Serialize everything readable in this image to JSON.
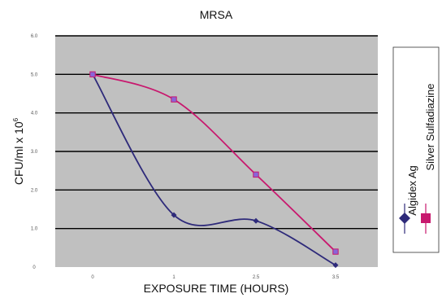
{
  "chart_data": {
    "type": "line",
    "title": "MRSA",
    "xlabel": "EXPOSURE TIME (HOURS)",
    "ylabel": "CFU/ml x 10",
    "ylabel_superscript": "6",
    "x": [
      "0",
      "1",
      "2.5",
      "3.5"
    ],
    "xticks": [
      "0",
      "1",
      "2.5",
      "3.5"
    ],
    "yticks": [
      "0",
      "1.0",
      "2.0",
      "3.0",
      "4.0",
      "5.0",
      "6.0"
    ],
    "ylim": [
      0,
      6
    ],
    "grid": true,
    "legend_position": "right",
    "series": [
      {
        "name": "Algidex Ag",
        "values": [
          5.0,
          1.35,
          1.2,
          0.05
        ],
        "color": "#2e2a7a",
        "marker": "diamond"
      },
      {
        "name": "Silver Sulfadiazine",
        "values": [
          5.0,
          4.35,
          2.4,
          0.4
        ],
        "color": "#c8186e",
        "marker": "square"
      }
    ]
  }
}
